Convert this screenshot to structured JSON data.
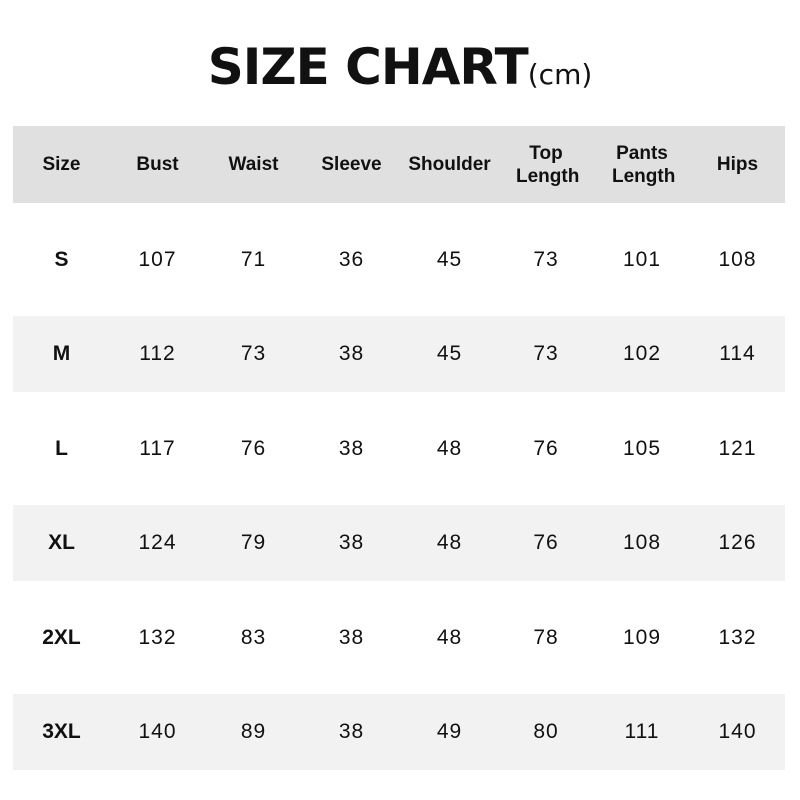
{
  "title": {
    "main": "SIZE CHART",
    "unit": "(cm)"
  },
  "colors": {
    "header_bg": "#e0e0e0",
    "stripe_bg": "#f2f2f2",
    "text": "#111111"
  },
  "chart_data": {
    "type": "table",
    "title": "SIZE CHART(cm)",
    "columns": [
      "Size",
      "Bust",
      "Waist",
      "Sleeve",
      "Shoulder",
      "Top Length",
      "Pants Length",
      "Hips"
    ],
    "rows": [
      [
        "S",
        "107",
        "71",
        "36",
        "45",
        "73",
        "101",
        "108"
      ],
      [
        "M",
        "112",
        "73",
        "38",
        "45",
        "73",
        "102",
        "114"
      ],
      [
        "L",
        "117",
        "76",
        "38",
        "48",
        "76",
        "105",
        "121"
      ],
      [
        "XL",
        "124",
        "79",
        "38",
        "48",
        "76",
        "108",
        "126"
      ],
      [
        "2XL",
        "132",
        "83",
        "38",
        "48",
        "78",
        "109",
        "132"
      ],
      [
        "3XL",
        "140",
        "89",
        "38",
        "49",
        "80",
        "111",
        "140"
      ]
    ]
  }
}
